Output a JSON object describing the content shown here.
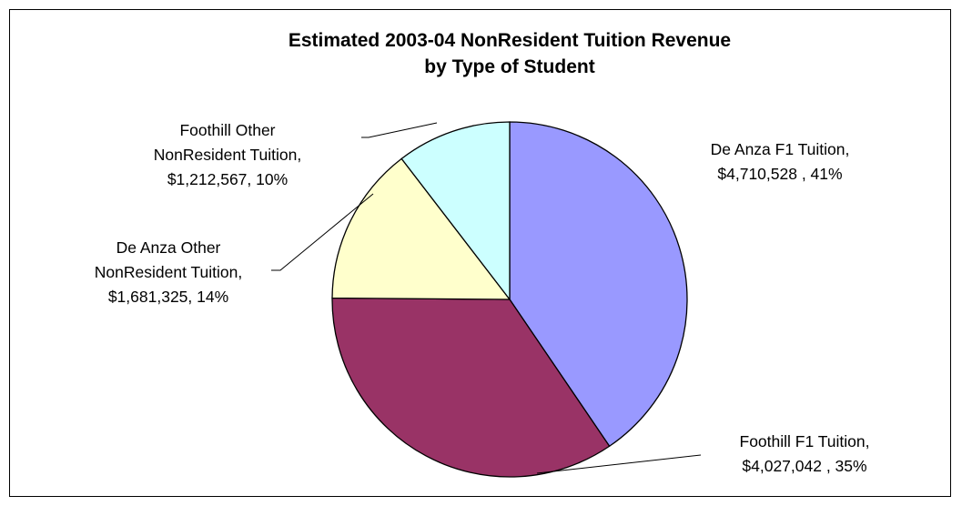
{
  "chart_data": {
    "type": "pie",
    "title_lines": [
      "Estimated 2003-04 NonResident Tuition Revenue",
      "by Type of Student"
    ],
    "slices": [
      {
        "name": "De Anza F1 Tuition",
        "value": 4710528,
        "percent": 41,
        "color": "#9999ff",
        "label_lines": [
          "De Anza F1 Tuition,",
          "$4,710,528 , 41%"
        ]
      },
      {
        "name": "Foothill F1 Tuition",
        "value": 4027042,
        "percent": 35,
        "color": "#993366",
        "label_lines": [
          "Foothill F1 Tuition,",
          "$4,027,042 , 35%"
        ]
      },
      {
        "name": "De Anza Other NonResident Tuition",
        "value": 1681325,
        "percent": 14,
        "color": "#ffffcc",
        "label_lines": [
          "De Anza Other",
          "NonResident Tuition,",
          "$1,681,325, 14%"
        ]
      },
      {
        "name": "Foothill Other NonResident Tuition",
        "value": 1212567,
        "percent": 10,
        "color": "#ccffff",
        "label_lines": [
          "Foothill Other",
          "NonResident Tuition,",
          "$1,212,567, 10%"
        ]
      }
    ],
    "legend": "none"
  }
}
